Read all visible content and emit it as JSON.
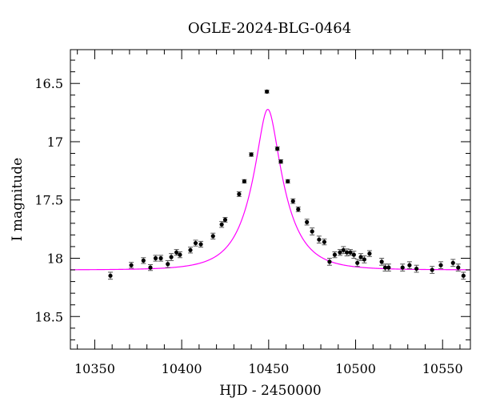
{
  "chart_data": {
    "type": "scatter",
    "title": "OGLE-2024-BLG-0464",
    "xlabel": "HJD - 2450000",
    "ylabel": "I magnitude",
    "xlim": [
      10336,
      10566
    ],
    "ylim": [
      18.78,
      16.21
    ],
    "y_inverted": true,
    "x_ticks": [
      10350,
      10400,
      10450,
      10500,
      10550
    ],
    "x_tick_labels": [
      "10350",
      "10400",
      "10450",
      "10500",
      "10550"
    ],
    "y_ticks": [
      16.5,
      17,
      17.5,
      18,
      18.5
    ],
    "y_tick_labels": [
      "16.5",
      "17",
      "17.5",
      "18",
      "18.5"
    ],
    "grid": false,
    "series": [
      {
        "kind": "points_with_errorbars",
        "color": "#000000",
        "x": [
          10359,
          10371,
          10378,
          10382,
          10385,
          10388,
          10392,
          10394,
          10397,
          10399,
          10405,
          10408,
          10411,
          10418,
          10423,
          10425,
          10433,
          10436,
          10440,
          10449,
          10455,
          10457,
          10461,
          10464,
          10467,
          10472,
          10475,
          10479,
          10482,
          10485,
          10488,
          10491,
          10493,
          10495,
          10497,
          10499,
          10501,
          10503,
          10505,
          10508,
          10515,
          10517,
          10519,
          10527,
          10531,
          10535,
          10544,
          10549,
          10556,
          10559,
          10562
        ],
        "y": [
          18.15,
          18.06,
          18.02,
          18.08,
          18.0,
          18.0,
          18.05,
          17.99,
          17.95,
          17.97,
          17.93,
          17.87,
          17.88,
          17.81,
          17.71,
          17.67,
          17.45,
          17.34,
          17.11,
          16.57,
          17.06,
          17.17,
          17.34,
          17.51,
          17.58,
          17.69,
          17.77,
          17.84,
          17.86,
          18.03,
          17.97,
          17.95,
          17.93,
          17.95,
          17.95,
          17.97,
          18.04,
          17.99,
          18.01,
          17.96,
          18.03,
          18.08,
          18.08,
          18.08,
          18.06,
          18.09,
          18.1,
          18.06,
          18.04,
          18.08,
          18.15
        ],
        "yerr": [
          0.03,
          0.025,
          0.025,
          0.025,
          0.025,
          0.025,
          0.03,
          0.03,
          0.025,
          0.025,
          0.025,
          0.025,
          0.025,
          0.025,
          0.025,
          0.02,
          0.02,
          0.015,
          0.015,
          0.012,
          0.015,
          0.015,
          0.015,
          0.02,
          0.02,
          0.025,
          0.03,
          0.03,
          0.025,
          0.03,
          0.025,
          0.025,
          0.03,
          0.03,
          0.025,
          0.03,
          0.03,
          0.03,
          0.03,
          0.025,
          0.03,
          0.03,
          0.03,
          0.03,
          0.03,
          0.03,
          0.03,
          0.03,
          0.03,
          0.03,
          0.03
        ]
      },
      {
        "kind": "model_curve",
        "color": "#ff00ff",
        "model": "PSPL",
        "t0": 10449.5,
        "u0": 0.29,
        "tE": 19,
        "baseline_mag": 18.1
      }
    ]
  }
}
